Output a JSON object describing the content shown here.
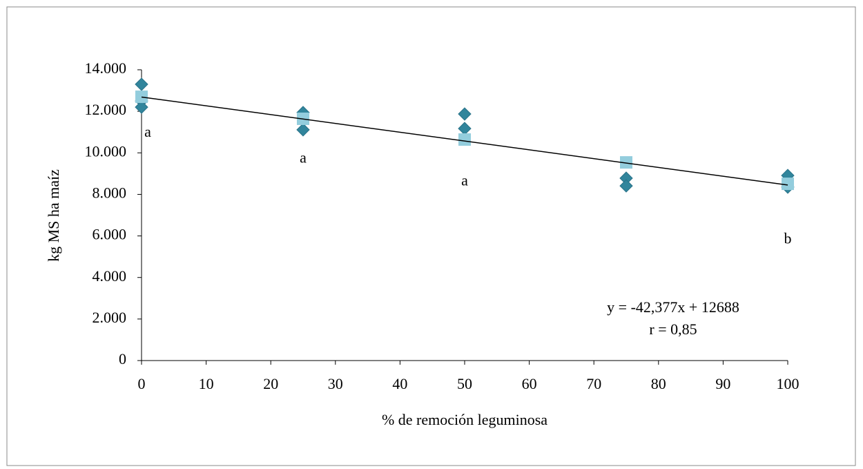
{
  "chart_data": {
    "type": "scatter",
    "x_label": "% de remoción leguminosa",
    "y_label": "kg MS ha maíz",
    "xlim": [
      0,
      100
    ],
    "xticks": [
      0,
      10,
      20,
      30,
      40,
      50,
      60,
      70,
      80,
      90,
      100
    ],
    "ylim": [
      0,
      14000
    ],
    "yticks": [
      0,
      {
        "value": 2000,
        "label": "2.000"
      },
      {
        "value": 4000,
        "label": "4.000"
      },
      {
        "value": 6000,
        "label": "6.000"
      },
      {
        "value": 8000,
        "label": "8.000"
      },
      {
        "value": 10000,
        "label": "10.000"
      },
      {
        "value": 12000,
        "label": "12.000"
      },
      {
        "value": 14000,
        "label": "14.000"
      }
    ],
    "grid": false,
    "series": [
      {
        "marker": "diamond",
        "color": "#31859c",
        "x": [
          0,
          0,
          0,
          25,
          25,
          50,
          50,
          75,
          75,
          100,
          100
        ],
        "values": [
          13300,
          12500,
          12200,
          11940,
          11110,
          11870,
          11170,
          8780,
          8410,
          8910,
          8350
        ]
      },
      {
        "marker": "square",
        "color": "#93cddd",
        "x": [
          0,
          25,
          50,
          75,
          100
        ],
        "values": [
          12700,
          11640,
          10640,
          9540,
          8510
        ]
      }
    ],
    "trendline": {
      "color": "#000000",
      "x": [
        0,
        100
      ],
      "values": [
        12688,
        8450
      ]
    },
    "annotations": [
      {
        "text": "a",
        "x": 0,
        "y": 10950
      },
      {
        "text": "a",
        "x": 25,
        "y": 9700
      },
      {
        "text": "a",
        "x": 50,
        "y": 8600
      },
      {
        "text": "b",
        "x": 100,
        "y": 5800
      }
    ],
    "equation": "y = -42,377x + 12688",
    "r_text": "r = 0,85"
  }
}
